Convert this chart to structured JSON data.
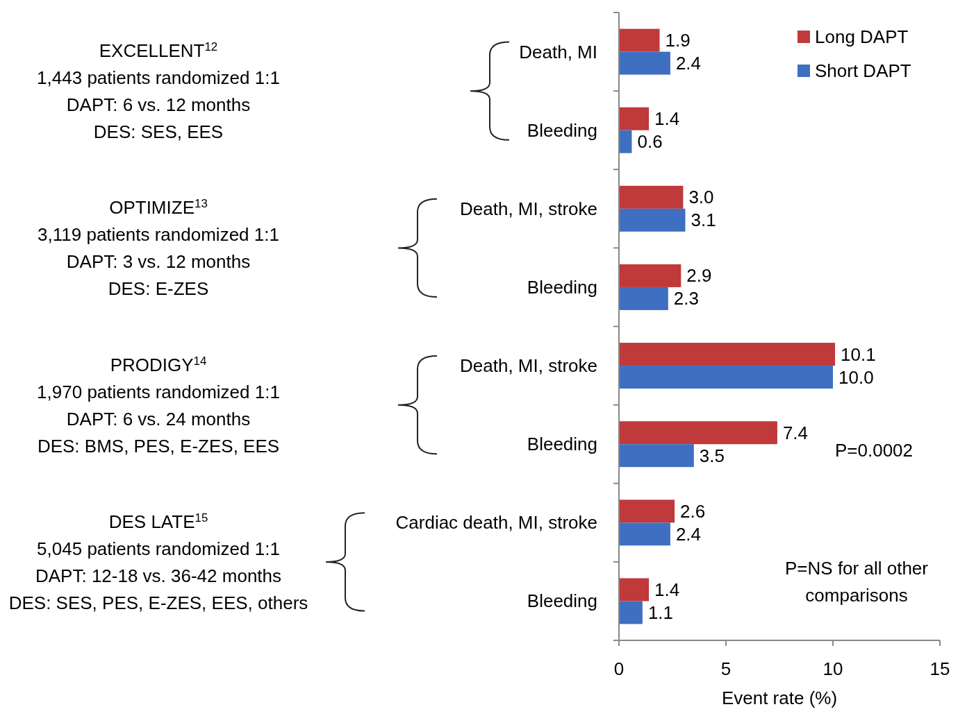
{
  "chart_data": {
    "type": "bar",
    "orientation": "horizontal",
    "categories": [
      "Death, MI",
      "Bleeding",
      "Death, MI, stroke",
      "Bleeding",
      "Death, MI, stroke",
      "Bleeding",
      "Cardiac death, MI, stroke",
      "Bleeding"
    ],
    "series": [
      {
        "name": "Long DAPT",
        "color": "#c0393b",
        "values": [
          1.9,
          1.4,
          3.0,
          2.9,
          10.1,
          7.4,
          2.6,
          1.4
        ]
      },
      {
        "name": "Short DAPT",
        "color": "#3f6fc0",
        "values": [
          2.4,
          0.6,
          3.1,
          2.3,
          10.0,
          3.5,
          2.4,
          1.1
        ]
      }
    ],
    "value_labels": [
      [
        "1.9",
        "1.4",
        "3.0",
        "2.9",
        "10.1",
        "7.4",
        "2.6",
        "1.4"
      ],
      [
        "2.4",
        "0.6",
        "3.1",
        "2.3",
        "10.0",
        "3.5",
        "2.4",
        "1.1"
      ]
    ],
    "xlim": [
      0,
      15
    ],
    "xticks": [
      0,
      5,
      10,
      15
    ],
    "xlabel": "Event rate (%)",
    "legend": "top right",
    "grid": false,
    "annotations": [
      "EXCELLENT$^{12}$",
      "1,443 patients randomized 1:1",
      "DAPT: 6 vs. 12 months",
      "DES: SES, EES",
      "OPTIMIZE$^{13}$",
      "3,119 patients randomized 1:1",
      "DAPT: 3 vs. 12 months",
      "DES: E-ZES",
      "PRODIGY$^{14}$",
      "1,970 patients randomized 1:1",
      "DAPT: 6 vs. 24 months",
      "DES: BMS, PES, E-ZES, EES",
      "DES LATE$^{15}$",
      "5,045 patients randomized 1:1",
      "DAPT: 12-18 vs. 36-42 months",
      "DES: SES, PES, E-ZES, EES, others",
      "P=0.0002",
      "P=NS for all other comparisons"
    ]
  }
}
